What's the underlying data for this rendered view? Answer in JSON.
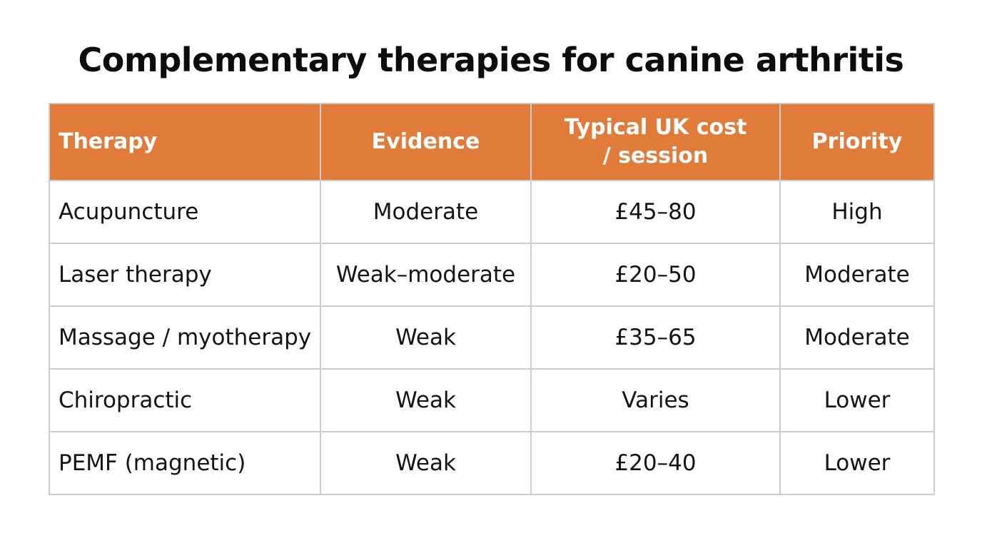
{
  "title": "Complementary therapies for canine arthritis",
  "colors": {
    "header_bg": "#e07b3a",
    "header_text": "#ffffff",
    "border": "#c9ced3"
  },
  "table": {
    "headers": [
      "Therapy",
      "Evidence",
      "Typical UK cost",
      "/ session",
      "Priority"
    ],
    "columns": [
      {
        "label": "Therapy"
      },
      {
        "label": "Evidence"
      },
      {
        "label_line1": "Typical UK cost",
        "label_line2": "/ session"
      },
      {
        "label": "Priority"
      }
    ],
    "rows": [
      [
        "Acupuncture",
        "Moderate",
        "£45–80",
        "High"
      ],
      [
        "Laser therapy",
        "Weak–moderate",
        "£20–50",
        "Moderate"
      ],
      [
        "Massage / myotherapy",
        "Weak",
        "£35–65",
        "Moderate"
      ],
      [
        "Chiropractic",
        "Weak",
        "Varies",
        "Lower"
      ],
      [
        "PEMF (magnetic)",
        "Weak",
        "£20–40",
        "Lower"
      ]
    ]
  }
}
